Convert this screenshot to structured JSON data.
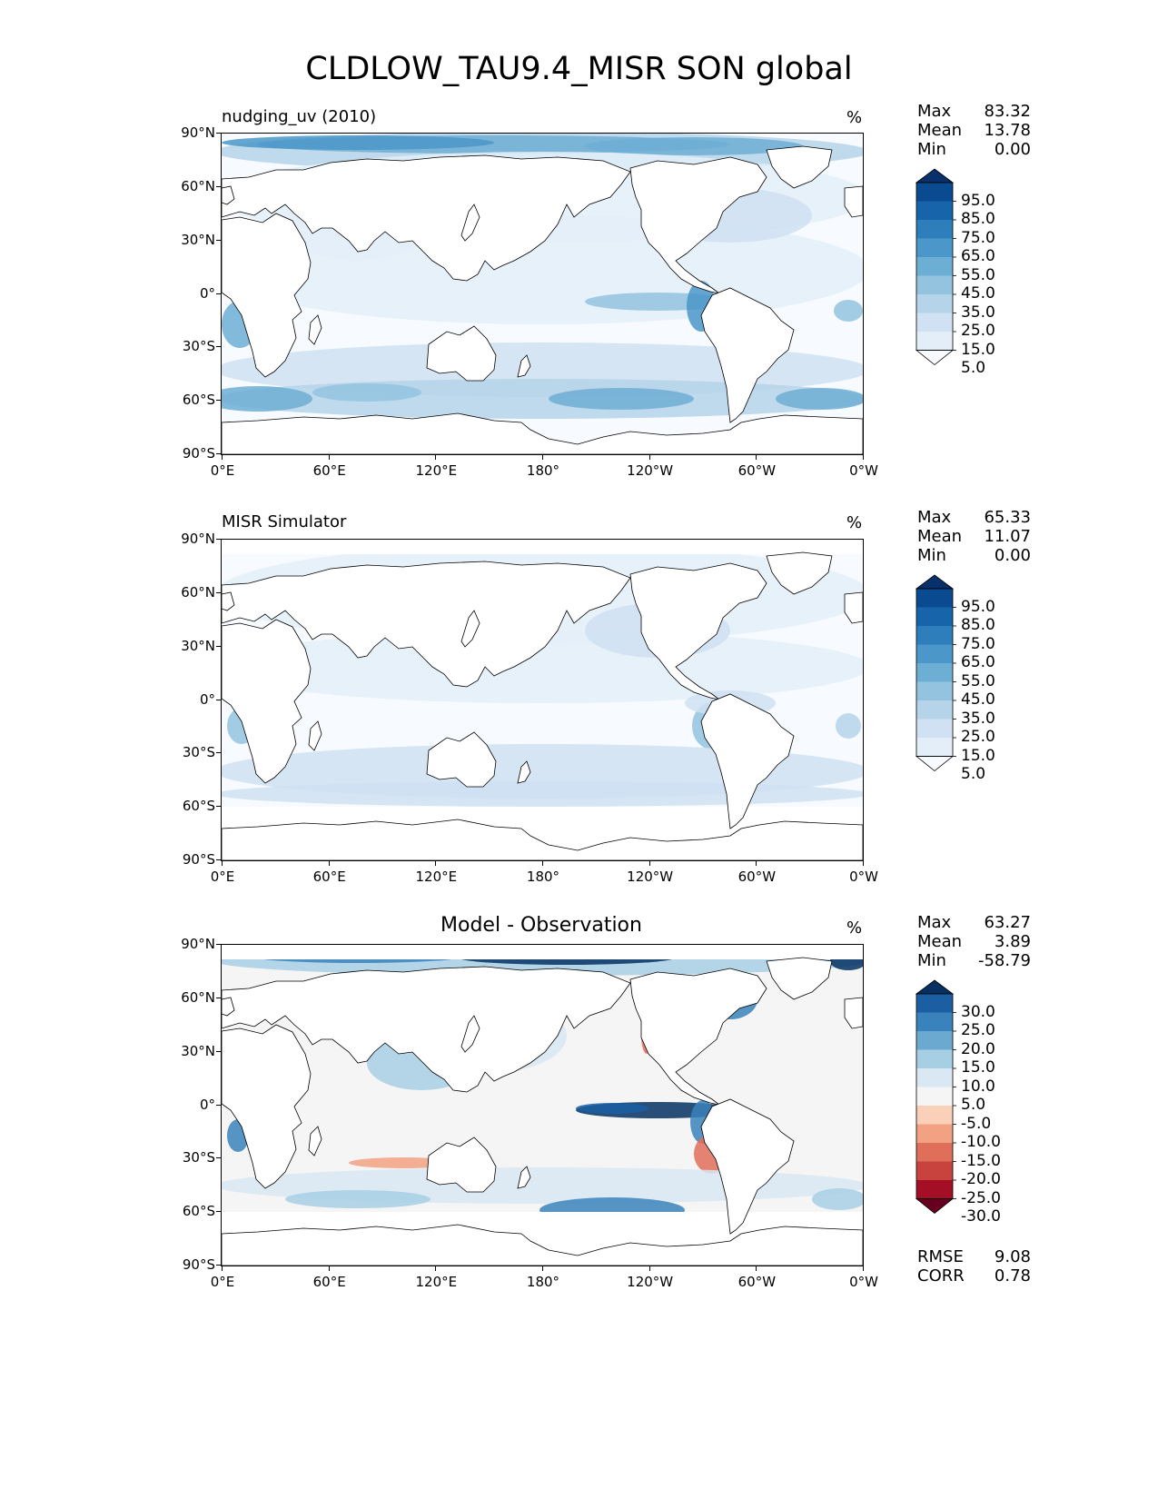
{
  "title": "CLDLOW_TAU9.4_MISR SON global",
  "units_label": "%",
  "lat_ticks": [
    "90°N",
    "60°N",
    "30°N",
    "0°",
    "30°S",
    "60°S",
    "90°S"
  ],
  "lon_ticks": [
    "0°E",
    "60°E",
    "120°E",
    "180°",
    "120°W",
    "60°W",
    "0°W"
  ],
  "panels": [
    {
      "title": "nudging_uv (2010)",
      "stats": {
        "max_label": "Max",
        "max": "83.32",
        "mean_label": "Mean",
        "mean": "13.78",
        "min_label": "Min",
        "min": "0.00"
      },
      "colorbar": {
        "labels": [
          "95.0",
          "85.0",
          "75.0",
          "65.0",
          "55.0",
          "45.0",
          "35.0",
          "25.0",
          "15.0",
          "5.0"
        ],
        "colors": [
          "#f7fbff",
          "#e3eef9",
          "#cfe1f2",
          "#b5d4e9",
          "#93c3df",
          "#6daed5",
          "#4b97c9",
          "#2f7ebc",
          "#1864aa",
          "#0a4a90",
          "#08306b"
        ]
      }
    },
    {
      "title": "MISR Simulator",
      "stats": {
        "max_label": "Max",
        "max": "65.33",
        "mean_label": "Mean",
        "mean": "11.07",
        "min_label": "Min",
        "min": "0.00"
      },
      "colorbar": {
        "labels": [
          "95.0",
          "85.0",
          "75.0",
          "65.0",
          "55.0",
          "45.0",
          "35.0",
          "25.0",
          "15.0",
          "5.0"
        ],
        "colors": [
          "#f7fbff",
          "#e3eef9",
          "#cfe1f2",
          "#b5d4e9",
          "#93c3df",
          "#6daed5",
          "#4b97c9",
          "#2f7ebc",
          "#1864aa",
          "#0a4a90",
          "#08306b"
        ]
      }
    },
    {
      "title": "Model - Observation",
      "stats": {
        "max_label": "Max",
        "max": "63.27",
        "mean_label": "Mean",
        "mean": "3.89",
        "min_label": "Min",
        "min": "-58.79"
      },
      "colorbar": {
        "labels": [
          "30.0",
          "25.0",
          "20.0",
          "15.0",
          "10.0",
          "5.0",
          "-5.0",
          "-10.0",
          "-15.0",
          "-20.0",
          "-25.0",
          "-30.0"
        ],
        "colors": [
          "#67001f",
          "#a50f26",
          "#c8433e",
          "#e06f5a",
          "#f2a183",
          "#fbd0b9",
          "#f5f5f5",
          "#d9e8f2",
          "#a7cfe4",
          "#6ba9d0",
          "#3a82bb",
          "#1b5fa2",
          "#053061"
        ]
      },
      "metrics": {
        "rmse_label": "RMSE",
        "rmse": "9.08",
        "corr_label": "CORR",
        "corr": "0.78"
      }
    }
  ]
}
